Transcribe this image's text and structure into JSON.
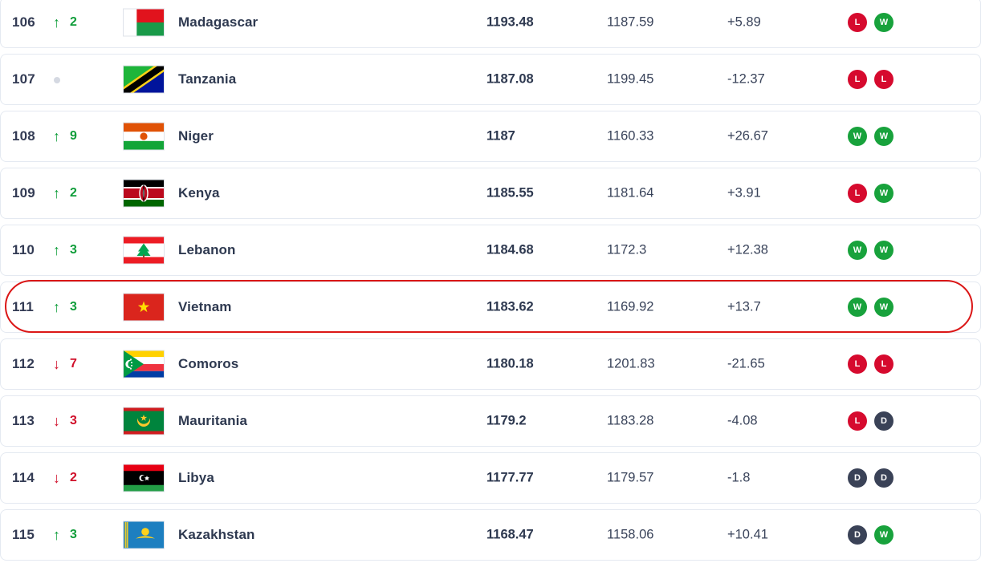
{
  "table": {
    "columns": [
      "rank",
      "movement",
      "flag",
      "country",
      "points",
      "previous_points",
      "change",
      "last_results"
    ],
    "colors": {
      "movement_up": "#0f9d3a",
      "movement_down": "#d00f2a",
      "no_change_dot": "#d5d9e2",
      "badge_win": "#18a23c",
      "badge_loss": "#d60a2e",
      "badge_draw": "#3a4257",
      "rank_text": "#333b54",
      "highlight_outline": "#db1717"
    },
    "rows": [
      {
        "rank": "106",
        "movement": "up",
        "change": "2",
        "flag": "madagascar",
        "country": "Madagascar",
        "points": "1193.48",
        "previous_points": "1187.59",
        "diff": "+5.89",
        "results": [
          "L",
          "W"
        ],
        "highlighted": false
      },
      {
        "rank": "107",
        "movement": "none",
        "change": "",
        "flag": "tanzania",
        "country": "Tanzania",
        "points": "1187.08",
        "previous_points": "1199.45",
        "diff": "-12.37",
        "results": [
          "L",
          "L"
        ],
        "highlighted": false
      },
      {
        "rank": "108",
        "movement": "up",
        "change": "9",
        "flag": "niger",
        "country": "Niger",
        "points": "1187",
        "previous_points": "1160.33",
        "diff": "+26.67",
        "results": [
          "W",
          "W"
        ],
        "highlighted": false
      },
      {
        "rank": "109",
        "movement": "up",
        "change": "2",
        "flag": "kenya",
        "country": "Kenya",
        "points": "1185.55",
        "previous_points": "1181.64",
        "diff": "+3.91",
        "results": [
          "L",
          "W"
        ],
        "highlighted": false
      },
      {
        "rank": "110",
        "movement": "up",
        "change": "3",
        "flag": "lebanon",
        "country": "Lebanon",
        "points": "1184.68",
        "previous_points": "1172.3",
        "diff": "+12.38",
        "results": [
          "W",
          "W"
        ],
        "highlighted": false
      },
      {
        "rank": "111",
        "movement": "up",
        "change": "3",
        "flag": "vietnam",
        "country": "Vietnam",
        "points": "1183.62",
        "previous_points": "1169.92",
        "diff": "+13.7",
        "results": [
          "W",
          "W"
        ],
        "highlighted": true
      },
      {
        "rank": "112",
        "movement": "down",
        "change": "7",
        "flag": "comoros",
        "country": "Comoros",
        "points": "1180.18",
        "previous_points": "1201.83",
        "diff": "-21.65",
        "results": [
          "L",
          "L"
        ],
        "highlighted": false
      },
      {
        "rank": "113",
        "movement": "down",
        "change": "3",
        "flag": "mauritania",
        "country": "Mauritania",
        "points": "1179.2",
        "previous_points": "1183.28",
        "diff": "-4.08",
        "results": [
          "L",
          "D"
        ],
        "highlighted": false
      },
      {
        "rank": "114",
        "movement": "down",
        "change": "2",
        "flag": "libya",
        "country": "Libya",
        "points": "1177.77",
        "previous_points": "1179.57",
        "diff": "-1.8",
        "results": [
          "D",
          "D"
        ],
        "highlighted": false
      },
      {
        "rank": "115",
        "movement": "up",
        "change": "3",
        "flag": "kazakhstan",
        "country": "Kazakhstan",
        "points": "1168.47",
        "previous_points": "1158.06",
        "diff": "+10.41",
        "results": [
          "D",
          "W"
        ],
        "highlighted": false
      }
    ]
  }
}
